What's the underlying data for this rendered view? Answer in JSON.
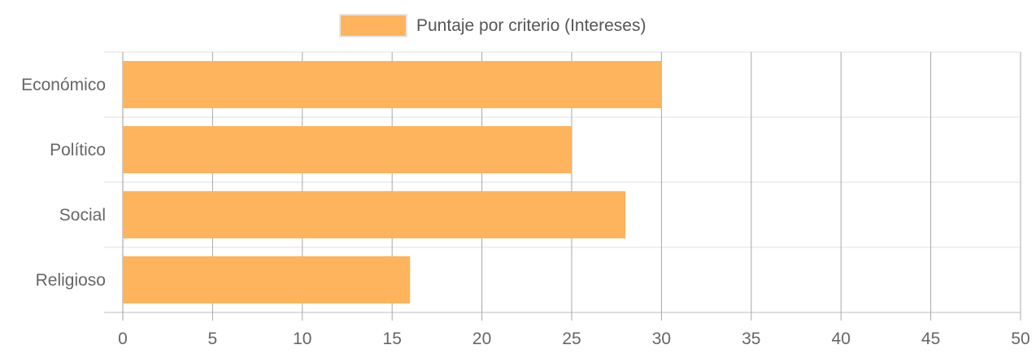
{
  "chart_data": {
    "type": "bar",
    "orientation": "horizontal",
    "categories": [
      "Económico",
      "Político",
      "Social",
      "Religioso"
    ],
    "series": [
      {
        "name": "Puntaje por criterio (Intereses)",
        "values": [
          30,
          25,
          28,
          16
        ],
        "color": "#FDB45C"
      }
    ],
    "x_ticks": [
      "0",
      "5",
      "10",
      "15",
      "20",
      "25",
      "30",
      "35",
      "40",
      "45",
      "50"
    ],
    "xlim": [
      0,
      50
    ],
    "grid": true,
    "legend_position": "top"
  }
}
